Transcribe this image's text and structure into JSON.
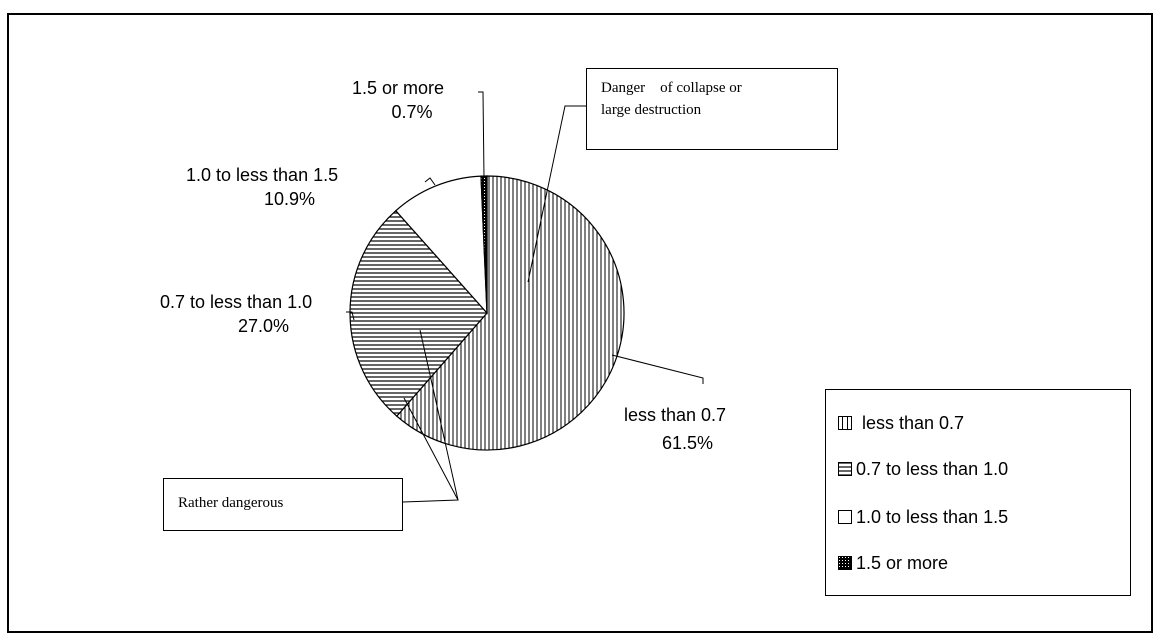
{
  "chart_data": {
    "type": "pie",
    "categories": [
      "less than 0.7",
      "0.7 to less than 1.0",
      "1.0 to less than 1.5",
      "1.5 or more"
    ],
    "values": [
      61.5,
      27.0,
      10.9,
      0.7
    ],
    "value_labels": [
      "61.5%",
      "27.0%",
      "10.9%",
      "0.7%"
    ],
    "patterns": [
      "vertical-lines",
      "horizontal-lines",
      "solid-white",
      "cross-hatch"
    ],
    "legend_position": "bottom-right",
    "annotations": [
      {
        "text": "Danger    of collapse or large destruction",
        "lines": [
          "Danger    of collapse or",
          "large destruction"
        ]
      },
      {
        "text": "Rather dangerous",
        "lines": [
          "Rather dangerous"
        ]
      }
    ]
  },
  "legend": {
    "items": [
      "less than 0.7",
      "0.7 to less than 1.0",
      "1.0 to less than 1.5",
      "1.5 or more"
    ]
  },
  "colors": {
    "stroke": "#000000",
    "background": "#ffffff"
  }
}
